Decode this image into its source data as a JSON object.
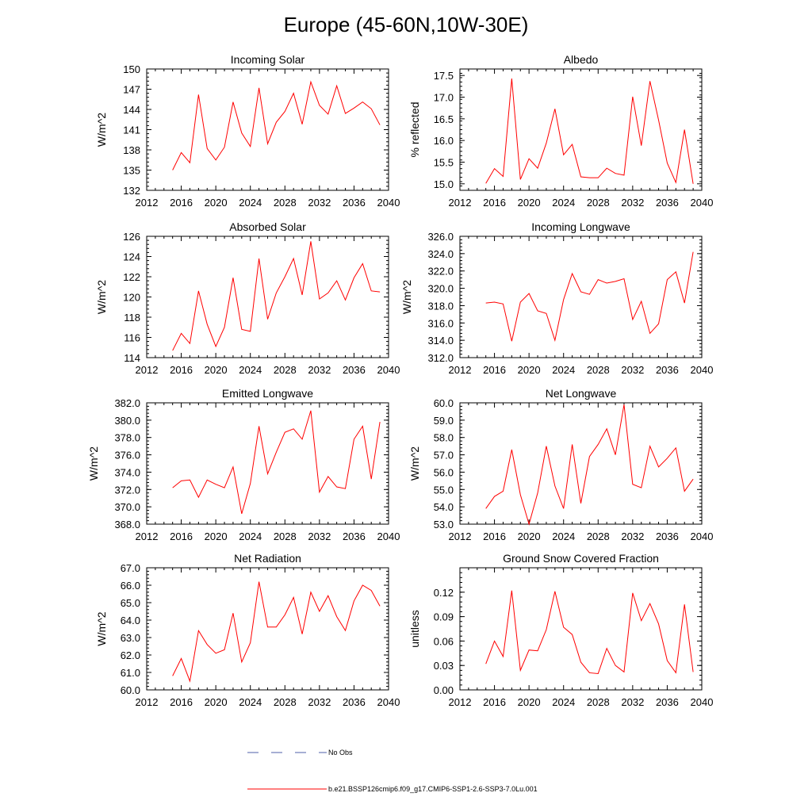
{
  "figure_title": "Europe (45-60N,10W-30E)",
  "legend": {
    "obs_label": "No Obs",
    "obs_color": "#4f5fa8",
    "model_label": "b.e21.BSSP126cmip6.f09_g17.CMIP6-SSP1-2.6-SSP3-7.0Lu.001",
    "model_color": "#ff0000"
  },
  "chart_data": [
    {
      "type": "line",
      "title": "Incoming Solar",
      "ylabel": "W/m^2",
      "xlim": [
        2012,
        2040
      ],
      "xticks": [
        "2012",
        "2016",
        "2020",
        "2024",
        "2028",
        "2032",
        "2036",
        "2040"
      ],
      "ylim": [
        132,
        150
      ],
      "yticks": [
        "132",
        "135",
        "138",
        "141",
        "144",
        "147",
        "150"
      ],
      "x": [
        2015,
        2016,
        2017,
        2018,
        2019,
        2020,
        2021,
        2022,
        2023,
        2024,
        2025,
        2026,
        2027,
        2028,
        2029,
        2030,
        2031,
        2032,
        2033,
        2034,
        2035,
        2036,
        2037,
        2038,
        2039
      ],
      "series": [
        {
          "values": [
            135.0,
            137.6,
            136.1,
            146.2,
            138.2,
            136.5,
            138.4,
            145.1,
            140.5,
            138.5,
            147.2,
            138.9,
            142.1,
            143.7,
            146.4,
            141.8,
            148.1,
            144.6,
            143.3,
            147.5,
            143.4,
            144.2,
            145.1,
            144.1,
            141.7
          ]
        }
      ]
    },
    {
      "type": "line",
      "title": "Albedo",
      "ylabel": "% reflected",
      "xlim": [
        2012,
        2040
      ],
      "xticks": [
        "2012",
        "2016",
        "2020",
        "2024",
        "2028",
        "2032",
        "2036",
        "2040"
      ],
      "ylim": [
        14.85,
        17.65
      ],
      "yticks": [
        "15.0",
        "15.5",
        "16.0",
        "16.5",
        "17.0",
        "17.5"
      ],
      "x": [
        2015,
        2016,
        2017,
        2018,
        2019,
        2020,
        2021,
        2022,
        2023,
        2024,
        2025,
        2026,
        2027,
        2028,
        2029,
        2030,
        2031,
        2032,
        2033,
        2034,
        2035,
        2036,
        2037,
        2038,
        2039
      ],
      "series": [
        {
          "values": [
            15.01,
            15.35,
            15.17,
            17.43,
            15.1,
            15.58,
            15.36,
            15.94,
            16.73,
            15.67,
            15.91,
            15.16,
            15.14,
            15.14,
            15.36,
            15.24,
            15.2,
            17.01,
            15.88,
            17.37,
            16.47,
            15.48,
            15.03,
            16.25,
            15.0
          ]
        }
      ]
    },
    {
      "type": "line",
      "title": "Absorbed Solar",
      "ylabel": "W/m^2",
      "xlim": [
        2012,
        2040
      ],
      "xticks": [
        "2012",
        "2016",
        "2020",
        "2024",
        "2028",
        "2032",
        "2036",
        "2040"
      ],
      "ylim": [
        114,
        126
      ],
      "yticks": [
        "114",
        "116",
        "118",
        "120",
        "122",
        "124",
        "126"
      ],
      "x": [
        2015,
        2016,
        2017,
        2018,
        2019,
        2020,
        2021,
        2022,
        2023,
        2024,
        2025,
        2026,
        2027,
        2028,
        2029,
        2030,
        2031,
        2032,
        2033,
        2034,
        2035,
        2036,
        2037,
        2038,
        2039
      ],
      "series": [
        {
          "values": [
            114.7,
            116.4,
            115.4,
            120.6,
            117.3,
            115.1,
            117.0,
            121.9,
            116.8,
            116.6,
            123.8,
            117.8,
            120.4,
            122.0,
            123.8,
            120.2,
            125.5,
            119.8,
            120.4,
            121.6,
            119.7,
            121.9,
            123.3,
            120.6,
            120.5
          ]
        }
      ]
    },
    {
      "type": "line",
      "title": "Incoming Longwave",
      "ylabel": "W/m^2",
      "xlim": [
        2012,
        2040
      ],
      "xticks": [
        "2012",
        "2016",
        "2020",
        "2024",
        "2028",
        "2032",
        "2036",
        "2040"
      ],
      "ylim": [
        312,
        326
      ],
      "yticks": [
        "312.0",
        "314.0",
        "316.0",
        "318.0",
        "320.0",
        "322.0",
        "324.0",
        "326.0"
      ],
      "x": [
        2015,
        2016,
        2017,
        2018,
        2019,
        2020,
        2021,
        2022,
        2023,
        2024,
        2025,
        2026,
        2027,
        2028,
        2029,
        2030,
        2031,
        2032,
        2033,
        2034,
        2035,
        2036,
        2037,
        2038,
        2039
      ],
      "series": [
        {
          "values": [
            318.3,
            318.4,
            318.2,
            313.9,
            318.4,
            319.4,
            317.4,
            317.1,
            314.0,
            318.7,
            321.7,
            319.6,
            319.3,
            321.0,
            320.6,
            320.8,
            321.1,
            316.4,
            318.5,
            314.8,
            315.9,
            321.0,
            321.9,
            318.3,
            324.2
          ]
        }
      ]
    },
    {
      "type": "line",
      "title": "Emitted Longwave",
      "ylabel": "W/m^2",
      "xlim": [
        2012,
        2040
      ],
      "xticks": [
        "2012",
        "2016",
        "2020",
        "2024",
        "2028",
        "2032",
        "2036",
        "2040"
      ],
      "ylim": [
        368,
        382
      ],
      "yticks": [
        "368.0",
        "370.0",
        "372.0",
        "374.0",
        "376.0",
        "378.0",
        "380.0",
        "382.0"
      ],
      "x": [
        2015,
        2016,
        2017,
        2018,
        2019,
        2020,
        2021,
        2022,
        2023,
        2024,
        2025,
        2026,
        2027,
        2028,
        2029,
        2030,
        2031,
        2032,
        2033,
        2034,
        2035,
        2036,
        2037,
        2038,
        2039
      ],
      "series": [
        {
          "values": [
            372.2,
            373.0,
            373.1,
            371.1,
            373.1,
            372.6,
            372.2,
            374.6,
            369.2,
            372.7,
            379.3,
            373.8,
            376.3,
            378.6,
            379.0,
            377.8,
            381.1,
            371.7,
            373.5,
            372.3,
            372.1,
            377.8,
            379.3,
            373.2,
            379.8
          ]
        }
      ]
    },
    {
      "type": "line",
      "title": "Net Longwave",
      "ylabel": "W/m^2",
      "xlim": [
        2012,
        2040
      ],
      "xticks": [
        "2012",
        "2016",
        "2020",
        "2024",
        "2028",
        "2032",
        "2036",
        "2040"
      ],
      "ylim": [
        53,
        60
      ],
      "yticks": [
        "53.0",
        "54.0",
        "55.0",
        "56.0",
        "57.0",
        "58.0",
        "59.0",
        "60.0"
      ],
      "x": [
        2015,
        2016,
        2017,
        2018,
        2019,
        2020,
        2021,
        2022,
        2023,
        2024,
        2025,
        2026,
        2027,
        2028,
        2029,
        2030,
        2031,
        2032,
        2033,
        2034,
        2035,
        2036,
        2037,
        2038,
        2039
      ],
      "series": [
        {
          "values": [
            53.9,
            54.6,
            54.9,
            57.3,
            54.7,
            53.0,
            54.8,
            57.5,
            55.2,
            53.9,
            57.6,
            54.2,
            56.9,
            57.6,
            58.5,
            57.0,
            59.9,
            55.3,
            55.1,
            57.5,
            56.3,
            56.8,
            57.4,
            54.9,
            55.6
          ]
        }
      ]
    },
    {
      "type": "line",
      "title": "Net Radiation",
      "ylabel": "W/m^2",
      "xlim": [
        2012,
        2040
      ],
      "xticks": [
        "2012",
        "2016",
        "2020",
        "2024",
        "2028",
        "2032",
        "2036",
        "2040"
      ],
      "ylim": [
        60,
        67
      ],
      "yticks": [
        "60.0",
        "61.0",
        "62.0",
        "63.0",
        "64.0",
        "65.0",
        "66.0",
        "67.0"
      ],
      "x": [
        2015,
        2016,
        2017,
        2018,
        2019,
        2020,
        2021,
        2022,
        2023,
        2024,
        2025,
        2026,
        2027,
        2028,
        2029,
        2030,
        2031,
        2032,
        2033,
        2034,
        2035,
        2036,
        2037,
        2038,
        2039
      ],
      "series": [
        {
          "values": [
            60.8,
            61.8,
            60.5,
            63.4,
            62.6,
            62.1,
            62.3,
            64.4,
            61.6,
            62.7,
            66.2,
            63.6,
            63.6,
            64.3,
            65.3,
            63.2,
            65.6,
            64.5,
            65.4,
            64.2,
            63.4,
            65.1,
            66.0,
            65.7,
            64.8
          ]
        }
      ]
    },
    {
      "type": "line",
      "title": "Ground Snow Covered Fraction",
      "ylabel": "unitless",
      "xlim": [
        2012,
        2040
      ],
      "xticks": [
        "2012",
        "2016",
        "2020",
        "2024",
        "2028",
        "2032",
        "2036",
        "2040"
      ],
      "ylim": [
        0,
        0.15
      ],
      "yticks": [
        "0.00",
        "0.03",
        "0.06",
        "0.09",
        "0.12"
      ],
      "ytick_values": [
        0,
        0.03,
        0.06,
        0.09,
        0.12
      ],
      "x": [
        2015,
        2016,
        2017,
        2018,
        2019,
        2020,
        2021,
        2022,
        2023,
        2024,
        2025,
        2026,
        2027,
        2028,
        2029,
        2030,
        2031,
        2032,
        2033,
        2034,
        2035,
        2036,
        2037,
        2038,
        2039
      ],
      "series": [
        {
          "values": [
            0.032,
            0.06,
            0.041,
            0.122,
            0.024,
            0.049,
            0.048,
            0.074,
            0.121,
            0.077,
            0.068,
            0.034,
            0.021,
            0.02,
            0.051,
            0.03,
            0.022,
            0.119,
            0.085,
            0.106,
            0.081,
            0.036,
            0.021,
            0.105,
            0.022
          ]
        }
      ]
    }
  ]
}
